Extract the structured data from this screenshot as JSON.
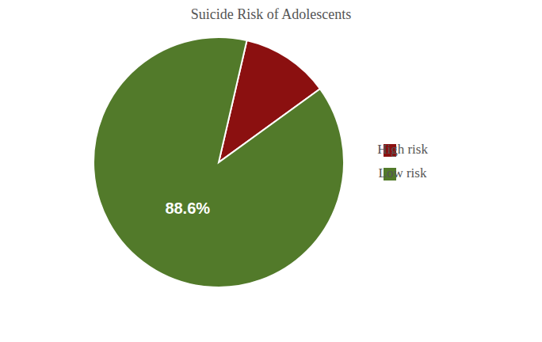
{
  "chart_data": {
    "type": "pie",
    "title": "Suicide Risk of Adolescents",
    "categories": [
      "High risk",
      "Low risk"
    ],
    "values": [
      11.4,
      88.6
    ],
    "colors": [
      "#8B1010",
      "#527A2A"
    ],
    "data_labels": true,
    "value_labels": [
      null,
      "88.6%"
    ],
    "legend": "right"
  }
}
